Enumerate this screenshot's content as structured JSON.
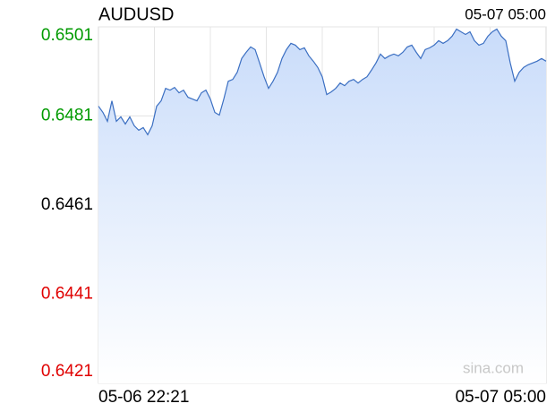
{
  "chart_data": {
    "type": "area",
    "title": "AUDUSD",
    "timestamp": "05-07 05:00",
    "watermark": "sina.com",
    "categories": [
      "05-06 22:21",
      null,
      null,
      null,
      null,
      null,
      null,
      null,
      null,
      null,
      null,
      null,
      null,
      null,
      null,
      null,
      null,
      null,
      null,
      null,
      null,
      null,
      null,
      null,
      null,
      null,
      null,
      null,
      null,
      null,
      null,
      null,
      null,
      null,
      null,
      null,
      null,
      null,
      null,
      null,
      null,
      null,
      null,
      null,
      null,
      null,
      null,
      null,
      null,
      null,
      null,
      null,
      null,
      null,
      null,
      null,
      null,
      null,
      null,
      null,
      null,
      null,
      null,
      null,
      null,
      null,
      null,
      null,
      null,
      null,
      null,
      null,
      null,
      null,
      null,
      null,
      null,
      null,
      null,
      null,
      null,
      null,
      null,
      null,
      null,
      null,
      null,
      null,
      null,
      null,
      null,
      null,
      null,
      null,
      null,
      null,
      null,
      null,
      null,
      null,
      "05-07 05:00"
    ],
    "values": [
      0.64832,
      0.64818,
      0.64798,
      0.64844,
      0.64798,
      0.64808,
      0.64792,
      0.64808,
      0.64788,
      0.64778,
      0.64784,
      0.64768,
      0.64788,
      0.64832,
      0.64844,
      0.64872,
      0.64868,
      0.64874,
      0.64862,
      0.64868,
      0.64852,
      0.64848,
      0.64844,
      0.64862,
      0.64868,
      0.64848,
      0.64818,
      0.64812,
      0.64848,
      0.64888,
      0.64892,
      0.64908,
      0.64939,
      0.64953,
      0.64965,
      0.64959,
      0.64929,
      0.64898,
      0.64872,
      0.64888,
      0.64908,
      0.64939,
      0.64959,
      0.64973,
      0.64969,
      0.64959,
      0.64963,
      0.64945,
      0.64933,
      0.64919,
      0.64898,
      0.64858,
      0.64864,
      0.64872,
      0.64884,
      0.64878,
      0.64888,
      0.64892,
      0.64884,
      0.64892,
      0.64898,
      0.64913,
      0.64929,
      0.64949,
      0.64939,
      0.64945,
      0.64949,
      0.64945,
      0.64953,
      0.64965,
      0.64969,
      0.64953,
      0.64939,
      0.64959,
      0.64963,
      0.64969,
      0.64979,
      0.64973,
      0.64979,
      0.64989,
      0.65005,
      0.64999,
      0.64993,
      0.64999,
      0.64979,
      0.64969,
      0.64973,
      0.64989,
      0.64999,
      0.65005,
      0.64989,
      0.64979,
      0.64929,
      0.64888,
      0.64908,
      0.64919,
      0.64925,
      0.64929,
      0.64933,
      0.64939,
      0.64933
    ],
    "color": "#3b6fc2",
    "ylim": [
      0.6421,
      0.6501
    ],
    "yticks": [
      0.6501,
      0.6481,
      0.6461,
      0.6441,
      0.6421
    ],
    "ytick_colors": [
      "#009a00",
      "#009a00",
      "#000000",
      "#e00000",
      "#e00000"
    ],
    "grid": true
  }
}
